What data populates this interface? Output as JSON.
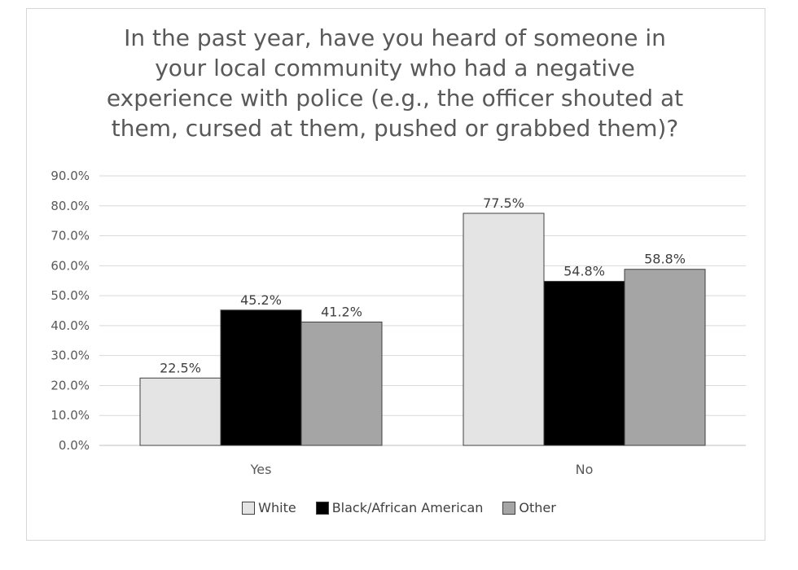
{
  "chart_data": {
    "type": "bar",
    "title_lines": [
      "In the past year, have you heard of someone in",
      "your local community who had a negative",
      "experience with police (e.g., the officer shouted at",
      "them, cursed at them, pushed or  grabbed them)?"
    ],
    "categories": [
      "Yes",
      "No"
    ],
    "series": [
      {
        "name": "White",
        "values": [
          22.5,
          77.5
        ],
        "labels": [
          "22.5%",
          "77.5%"
        ],
        "color": "#e4e4e4"
      },
      {
        "name": "Black/African American",
        "values": [
          45.2,
          54.8
        ],
        "labels": [
          "45.2%",
          "54.8%"
        ],
        "color": "#000000"
      },
      {
        "name": "Other",
        "values": [
          41.2,
          58.8
        ],
        "labels": [
          "41.2%",
          "58.8%"
        ],
        "color": "#a5a5a5"
      }
    ],
    "y_ticks": [
      "0.0%",
      "10.0%",
      "20.0%",
      "30.0%",
      "40.0%",
      "50.0%",
      "60.0%",
      "70.0%",
      "80.0%",
      "90.0%"
    ],
    "ylim": [
      0,
      90
    ],
    "grid": true,
    "legend_position": "bottom"
  }
}
